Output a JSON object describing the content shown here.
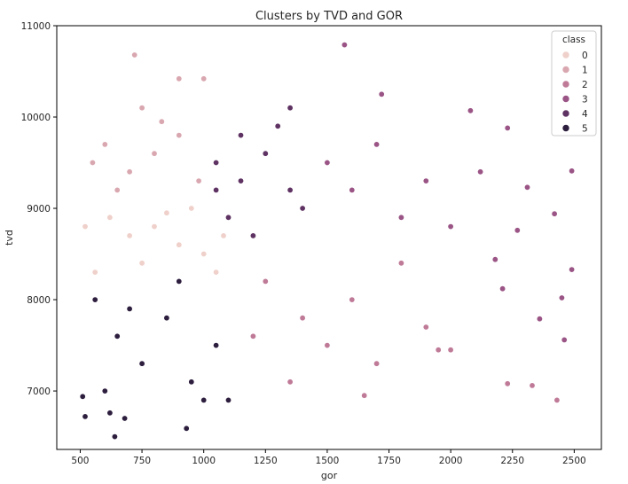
{
  "chart_data": {
    "type": "scatter",
    "title": "Clusters by TVD and GOR",
    "xlabel": "gor",
    "ylabel": "tvd",
    "xlim": [
      405,
      2610
    ],
    "ylim": [
      6360,
      11000
    ],
    "xticks": [
      500,
      750,
      1000,
      1250,
      1500,
      1750,
      2000,
      2250,
      2500
    ],
    "yticks": [
      7000,
      8000,
      9000,
      10000,
      11000
    ],
    "xtick_labels": [
      "500",
      "750",
      "1000",
      "1250",
      "1500",
      "1750",
      "2000",
      "2250",
      "2500"
    ],
    "ytick_labels": [
      "7000",
      "8000",
      "9000",
      "10000",
      "11000"
    ],
    "grid": false,
    "legend": {
      "title": "class",
      "position": "top-right"
    },
    "series": [
      {
        "name": "0",
        "color": "#efd0ca",
        "region": {
          "description": "dense cluster, gor 500-1100, tvd 8100-9200"
        },
        "points": [
          [
            620,
            8900
          ],
          [
            700,
            8700
          ],
          [
            800,
            8800
          ],
          [
            900,
            8600
          ],
          [
            1000,
            8500
          ],
          [
            1080,
            8700
          ],
          [
            560,
            8300
          ],
          [
            750,
            8400
          ],
          [
            950,
            9000
          ],
          [
            1050,
            8300
          ],
          [
            850,
            8950
          ],
          [
            520,
            8800
          ]
        ]
      },
      {
        "name": "1",
        "color": "#d9a7b0",
        "region": {
          "description": "dense cluster, gor 500-1000, tvd 9000-10150"
        },
        "points": [
          [
            600,
            9700
          ],
          [
            700,
            9400
          ],
          [
            800,
            9600
          ],
          [
            900,
            9800
          ],
          [
            750,
            10100
          ],
          [
            650,
            9200
          ],
          [
            550,
            9500
          ],
          [
            980,
            9300
          ],
          [
            720,
            10680
          ],
          [
            900,
            10420
          ],
          [
            1000,
            10420
          ],
          [
            830,
            9950
          ]
        ]
      },
      {
        "name": "2",
        "color": "#bf7a97",
        "region": {
          "description": "dense cluster, gor 1100-1900, tvd 6850-8600"
        },
        "points": [
          [
            1250,
            8200
          ],
          [
            1400,
            7800
          ],
          [
            1500,
            7500
          ],
          [
            1600,
            8000
          ],
          [
            1700,
            7300
          ],
          [
            1800,
            8400
          ],
          [
            1350,
            7100
          ],
          [
            1200,
            7600
          ],
          [
            1900,
            7700
          ],
          [
            1950,
            7450
          ],
          [
            2000,
            7450
          ],
          [
            2230,
            7080
          ],
          [
            2330,
            7060
          ],
          [
            2430,
            6900
          ],
          [
            1650,
            6950
          ]
        ]
      },
      {
        "name": "3",
        "color": "#9a5485",
        "region": {
          "description": "dispersed cluster, gor 1400-2500, tvd 8300-10300"
        },
        "points": [
          [
            1500,
            9500
          ],
          [
            1600,
            9200
          ],
          [
            1700,
            9700
          ],
          [
            1800,
            8900
          ],
          [
            1900,
            9300
          ],
          [
            2000,
            8800
          ],
          [
            2080,
            10070
          ],
          [
            2120,
            9400
          ],
          [
            2230,
            9880
          ],
          [
            2270,
            8760
          ],
          [
            2310,
            9230
          ],
          [
            2420,
            8940
          ],
          [
            2490,
            9410
          ],
          [
            2490,
            8330
          ],
          [
            2180,
            8440
          ],
          [
            1570,
            10790
          ],
          [
            1720,
            10250
          ],
          [
            2210,
            8120
          ],
          [
            2360,
            7790
          ],
          [
            2450,
            8020
          ],
          [
            2460,
            7560
          ]
        ]
      },
      {
        "name": "4",
        "color": "#5e3262",
        "region": {
          "description": "dense cluster, gor 1000-1450, tvd 8300-10150"
        },
        "points": [
          [
            1050,
            9500
          ],
          [
            1150,
            9300
          ],
          [
            1250,
            9600
          ],
          [
            1350,
            9200
          ],
          [
            1100,
            8900
          ],
          [
            1300,
            9900
          ],
          [
            1400,
            9000
          ],
          [
            1200,
            8700
          ],
          [
            1350,
            10100
          ],
          [
            1150,
            9800
          ],
          [
            1050,
            9200
          ]
        ]
      },
      {
        "name": "5",
        "color": "#2d1e3e",
        "region": {
          "description": "dense cluster, gor 500-1100, tvd 6500-8350"
        },
        "points": [
          [
            560,
            8000
          ],
          [
            650,
            7600
          ],
          [
            750,
            7300
          ],
          [
            850,
            7800
          ],
          [
            950,
            7100
          ],
          [
            1050,
            7500
          ],
          [
            600,
            7000
          ],
          [
            700,
            7900
          ],
          [
            900,
            8200
          ],
          [
            1000,
            6900
          ],
          [
            640,
            6500
          ],
          [
            930,
            6590
          ],
          [
            520,
            6720
          ],
          [
            620,
            6760
          ],
          [
            680,
            6700
          ],
          [
            510,
            6940
          ],
          [
            1100,
            6900
          ]
        ]
      }
    ]
  }
}
